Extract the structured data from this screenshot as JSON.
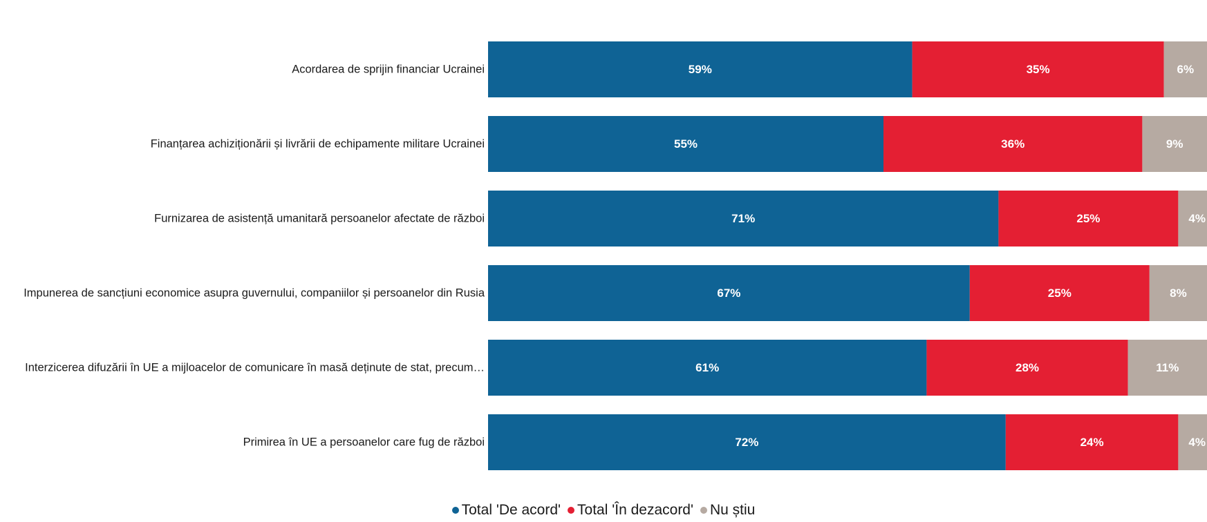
{
  "chart_data": {
    "type": "bar",
    "orientation": "horizontal",
    "stacked": true,
    "categories": [
      "Acordarea de sprijin financiar Ucrainei",
      "Finanțarea achiziționării și livrării de echipamente militare Ucrainei",
      "Furnizarea de asistență umanitară persoanelor afectate de război",
      "Impunerea de sancțiuni economice asupra guvernului, companiilor și persoanelor din Rusia",
      "Interzicerea difuzării în UE a mijloacelor de comunicare în masă deținute de stat, precum…",
      "Primirea în UE a persoanelor care fug de război"
    ],
    "series": [
      {
        "name": "Total 'De acord'",
        "color": "#0f6395",
        "values": [
          59,
          55,
          71,
          67,
          61,
          72
        ]
      },
      {
        "name": "Total 'În dezacord'",
        "color": "#e41f33",
        "values": [
          35,
          36,
          25,
          25,
          28,
          24
        ]
      },
      {
        "name": "Nu știu",
        "color": "#b6aaa2",
        "values": [
          6,
          9,
          4,
          8,
          11,
          4
        ]
      }
    ],
    "value_suffix": "%",
    "xlim": [
      0,
      100
    ],
    "grid": false,
    "legend_position": "bottom-center"
  }
}
